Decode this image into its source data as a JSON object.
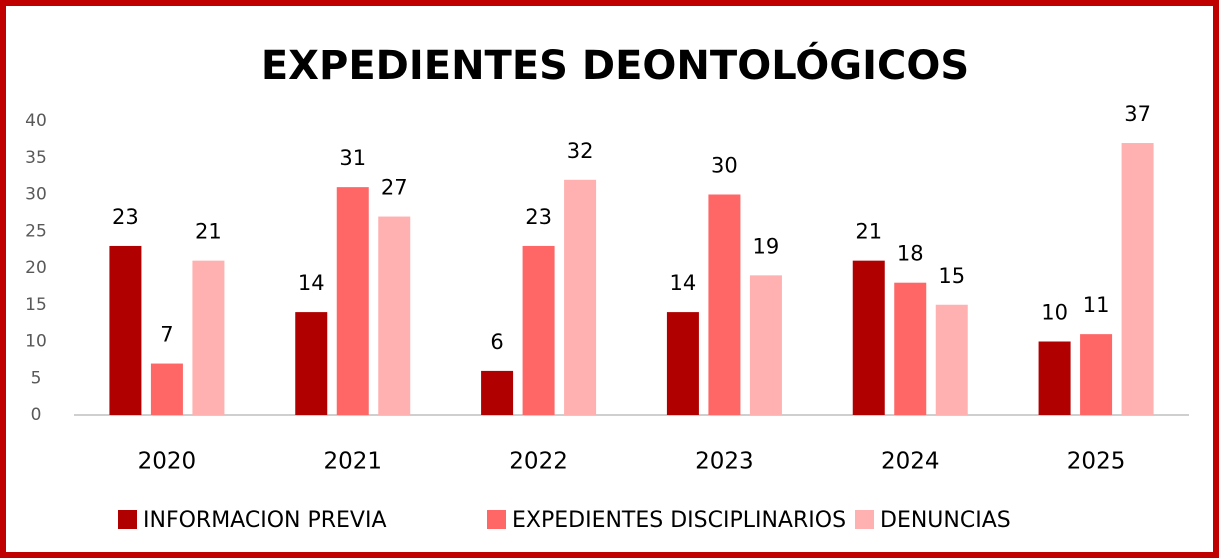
{
  "chart_data": {
    "type": "bar",
    "title": "EXPEDIENTES DEONTOLÓGICOS",
    "categories": [
      "2020",
      "2021",
      "2022",
      "2023",
      "2024",
      "2025"
    ],
    "series": [
      {
        "name": "INFORMACION PREVIA",
        "color": "#b00000",
        "values": [
          23,
          14,
          6,
          14,
          21,
          10
        ]
      },
      {
        "name": "EXPEDIENTES DISCIPLINARIOS",
        "color": "#ff6666",
        "values": [
          7,
          31,
          23,
          30,
          18,
          11
        ]
      },
      {
        "name": "DENUNCIAS",
        "color": "#ffb0b0",
        "values": [
          21,
          27,
          32,
          19,
          15,
          37
        ]
      }
    ],
    "ylim": [
      0,
      40
    ],
    "yticks": [
      0,
      5,
      10,
      15,
      20,
      25,
      30,
      35,
      40
    ],
    "grid": false,
    "legend": "bottom"
  }
}
